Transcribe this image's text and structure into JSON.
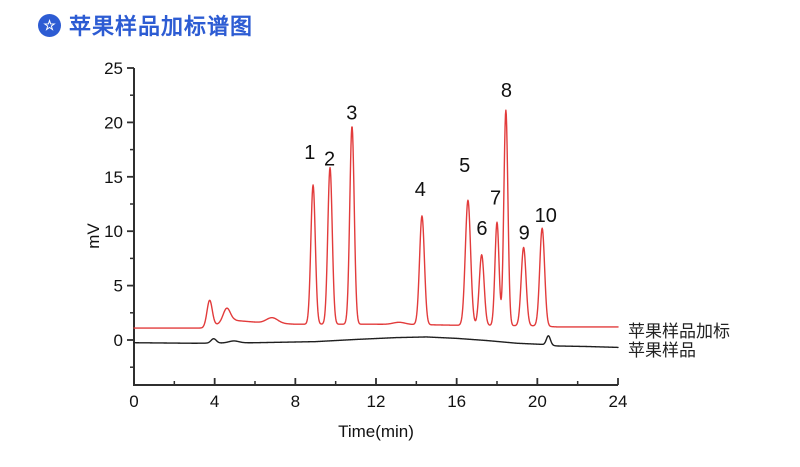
{
  "header": {
    "title": "苹果样品加标谱图",
    "badge_color": "#2d5cd3",
    "title_color": "#2d5cd3",
    "badge_glyph": "☆"
  },
  "chart_data": {
    "type": "line",
    "title": "",
    "xlabel": "Time(min)",
    "ylabel": "mV",
    "xlim": [
      0,
      24
    ],
    "ylim": [
      -4.14,
      25
    ],
    "xticks": [
      0,
      4,
      8,
      12,
      16,
      20,
      24
    ],
    "xminor_step": 2,
    "yticks": [
      0,
      5,
      10,
      15,
      20,
      25
    ],
    "yminor_step": 2.5,
    "grid": false,
    "legend_position": "right of trace ends",
    "axis_color": "#2f2f2f",
    "tick_label_color": "#111111",
    "peak_label_color": "#111111",
    "series": [
      {
        "name": "苹果样品加标",
        "color": "#e23b3b",
        "baseline": [
          [
            0,
            1.1
          ],
          [
            3.4,
            1.1
          ],
          [
            5,
            1.8
          ],
          [
            6.3,
            1.6
          ],
          [
            8,
            1.45
          ],
          [
            12,
            1.45
          ],
          [
            14.6,
            1.4
          ],
          [
            16.2,
            1.35
          ],
          [
            20,
            1.3
          ],
          [
            21,
            1.2
          ],
          [
            24,
            1.2
          ]
        ],
        "peaks": [
          {
            "t": 3.75,
            "h": 2.4,
            "s": 0.13
          },
          {
            "t": 4.6,
            "h": 1.3,
            "s": 0.18
          },
          {
            "t": 6.85,
            "h": 0.5,
            "s": 0.28
          },
          {
            "t": 13.15,
            "h": 0.2,
            "s": 0.3
          },
          {
            "label": "1",
            "t": 8.88,
            "h": 12.8,
            "s": 0.11,
            "label_t": 8.72,
            "label_mv": 17.3
          },
          {
            "label": "2",
            "t": 9.72,
            "h": 14.4,
            "s": 0.11,
            "label_t": 9.7,
            "label_mv": 16.7
          },
          {
            "label": "3",
            "t": 10.81,
            "h": 18.2,
            "s": 0.11,
            "label_t": 10.8,
            "label_mv": 20.9
          },
          {
            "label": "4",
            "t": 14.28,
            "h": 10.0,
            "s": 0.12,
            "label_t": 14.2,
            "label_mv": 13.9
          },
          {
            "label": "5",
            "t": 16.56,
            "h": 11.5,
            "s": 0.13,
            "label_t": 16.4,
            "label_mv": 16.1
          },
          {
            "label": "6",
            "t": 17.24,
            "h": 6.5,
            "s": 0.12,
            "label_t": 17.25,
            "label_mv": 10.3
          },
          {
            "label": "7",
            "t": 18.0,
            "h": 9.5,
            "s": 0.1,
            "label_t": 17.93,
            "label_mv": 13.1
          },
          {
            "label": "8",
            "t": 18.44,
            "h": 19.8,
            "s": 0.1,
            "label_t": 18.47,
            "label_mv": 23.0
          },
          {
            "label": "9",
            "t": 19.32,
            "h": 7.2,
            "s": 0.12,
            "label_t": 19.35,
            "label_mv": 9.9
          },
          {
            "label": "10",
            "t": 20.24,
            "h": 9.0,
            "s": 0.12,
            "label_t": 20.42,
            "label_mv": 11.5
          }
        ]
      },
      {
        "name": "苹果样品",
        "color": "#1f1f1f",
        "baseline": [
          [
            0,
            -0.25
          ],
          [
            3,
            -0.3
          ],
          [
            6,
            -0.25
          ],
          [
            9,
            -0.15
          ],
          [
            11,
            0.05
          ],
          [
            13,
            0.22
          ],
          [
            14.5,
            0.28
          ],
          [
            16,
            0.15
          ],
          [
            17.5,
            -0.05
          ],
          [
            19,
            -0.3
          ],
          [
            20.2,
            -0.4
          ],
          [
            21,
            -0.55
          ],
          [
            22.5,
            -0.6
          ],
          [
            24,
            -0.68
          ]
        ],
        "peaks": [
          {
            "t": 3.95,
            "h": 0.4,
            "s": 0.13
          },
          {
            "t": 4.95,
            "h": 0.18,
            "s": 0.25
          },
          {
            "t": 20.55,
            "h": 0.85,
            "s": 0.1
          }
        ]
      }
    ]
  }
}
